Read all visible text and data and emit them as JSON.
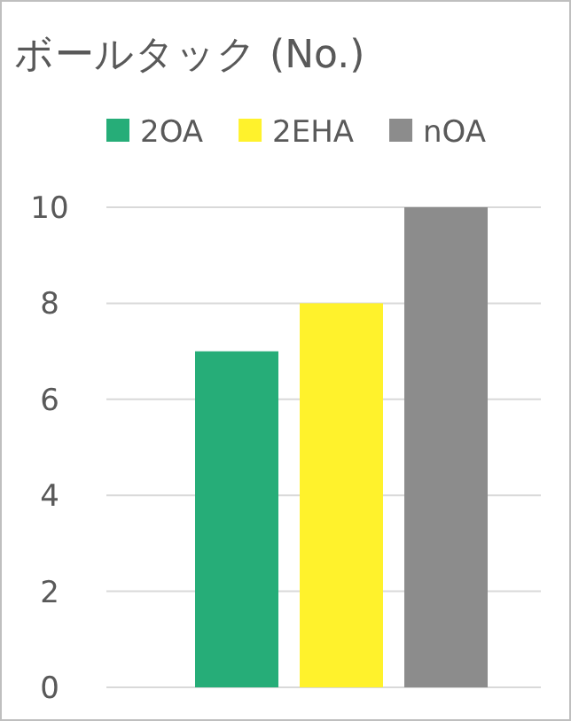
{
  "chart_data": {
    "type": "bar",
    "title": "ボールタック (No.)",
    "categories": [
      null
    ],
    "series": [
      {
        "name": "2OA",
        "color": "#26ad78",
        "values": [
          7
        ]
      },
      {
        "name": "2EHA",
        "color": "#fff22c",
        "values": [
          8
        ]
      },
      {
        "name": "nOA",
        "color": "#8c8c8c",
        "values": [
          10
        ]
      }
    ],
    "ylim": [
      0,
      10
    ],
    "yticks": [
      0,
      2,
      4,
      6,
      8,
      10
    ],
    "grid": "y",
    "legend": "top"
  }
}
